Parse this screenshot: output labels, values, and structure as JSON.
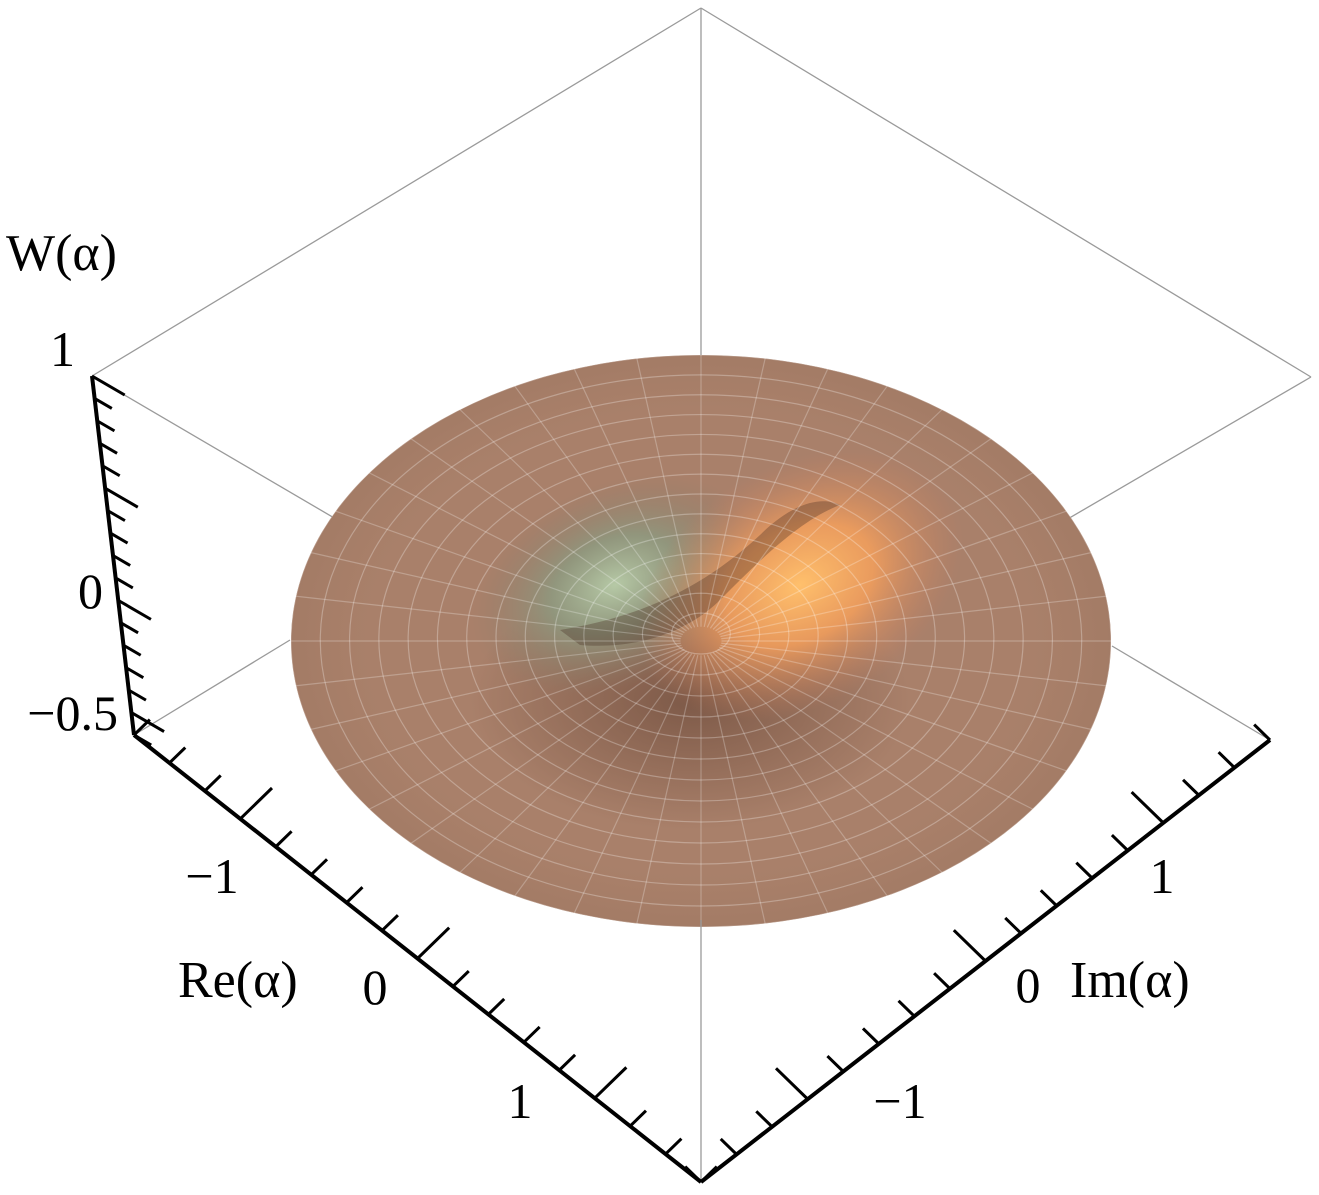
{
  "chart_data": {
    "type": "surface3d",
    "function": "W(α) = (2/π)(2|α|² − 1)·exp(−2|α|²) with an odd (tilted) component, plotted over a disk |α| ≤ 1.6",
    "xlabel": "Re(α)",
    "ylabel": "Im(α)",
    "zlabel": "W(α)",
    "xlim": [
      -1.6,
      1.6
    ],
    "ylim": [
      -1.6,
      1.6
    ],
    "zlim": [
      -0.64,
      1.0
    ],
    "re_ticks": [
      {
        "value": -1,
        "label": "−1"
      },
      {
        "value": 0,
        "label": "0"
      },
      {
        "value": 1,
        "label": "1"
      }
    ],
    "im_ticks": [
      {
        "value": -1,
        "label": "−1"
      },
      {
        "value": 0,
        "label": "0"
      },
      {
        "value": 1,
        "label": "1"
      }
    ],
    "z_ticks": [
      {
        "value": -0.5,
        "label": "−0.5"
      },
      {
        "value": 0,
        "label": "0"
      },
      {
        "value": 1,
        "label": "1"
      }
    ],
    "surface_color": "#a9806a",
    "peak_color": "#ffb463",
    "dip_color": "#9bad92",
    "mesh_color": "#ffffff",
    "bounding_box": true,
    "mesh": "polar"
  }
}
